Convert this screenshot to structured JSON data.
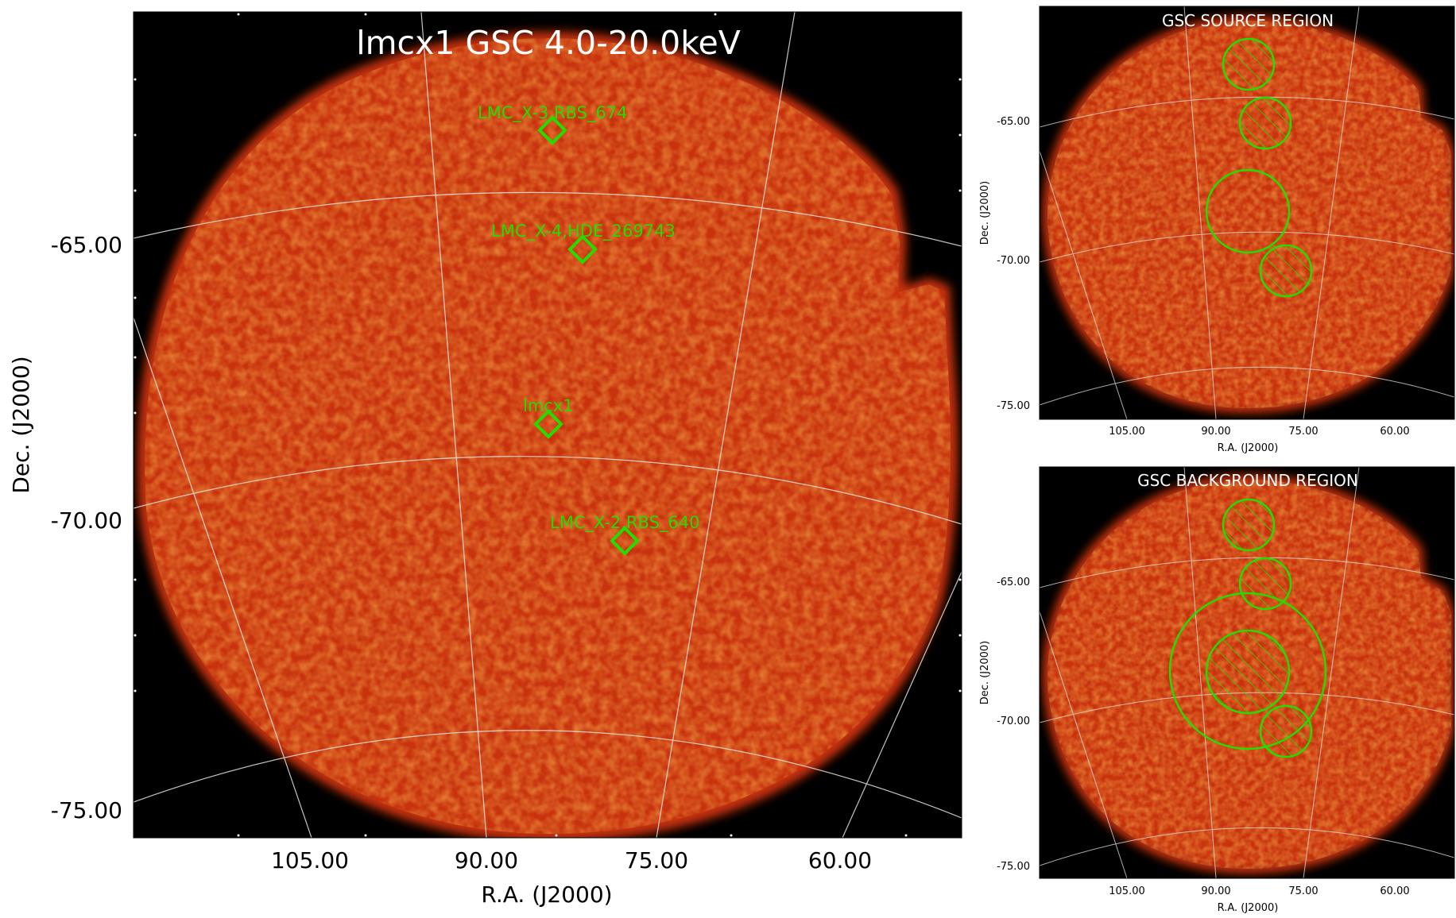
{
  "main": {
    "title": "lmcx1 GSC 4.0-20.0keV",
    "xlabel": "R.A. (J2000)",
    "ylabel": "Dec. (J2000)",
    "xticks": [
      "105.00",
      "90.00",
      "75.00",
      "60.00"
    ],
    "yticks": [
      "-65.00",
      "-70.00",
      "-75.00"
    ],
    "sources": [
      {
        "label": "LMC_X-3,RBS_674"
      },
      {
        "label": "LMC_X-4,HDE_269743"
      },
      {
        "label": "lmcx1"
      },
      {
        "label": "LMC_X-2,RBS_640"
      }
    ]
  },
  "source_panel": {
    "title": "GSC SOURCE REGION",
    "xlabel": "R.A. (J2000)",
    "ylabel": "Dec. (J2000)",
    "xticks": [
      "105.00",
      "90.00",
      "75.00",
      "60.00"
    ],
    "yticks": [
      "-65.00",
      "-70.00",
      "-75.00"
    ]
  },
  "background_panel": {
    "title": "GSC BACKGROUND REGION",
    "xlabel": "R.A. (J2000)",
    "ylabel": "Dec. (J2000)",
    "xticks": [
      "105.00",
      "90.00",
      "75.00",
      "60.00"
    ],
    "yticks": [
      "-65.00",
      "-70.00",
      "-75.00"
    ]
  },
  "colors": {
    "field_background": "#000000",
    "sky_map": "#d93a0c",
    "region_green": "#22dd00",
    "grid": "#dddddd",
    "title_text": "#ffffff"
  }
}
